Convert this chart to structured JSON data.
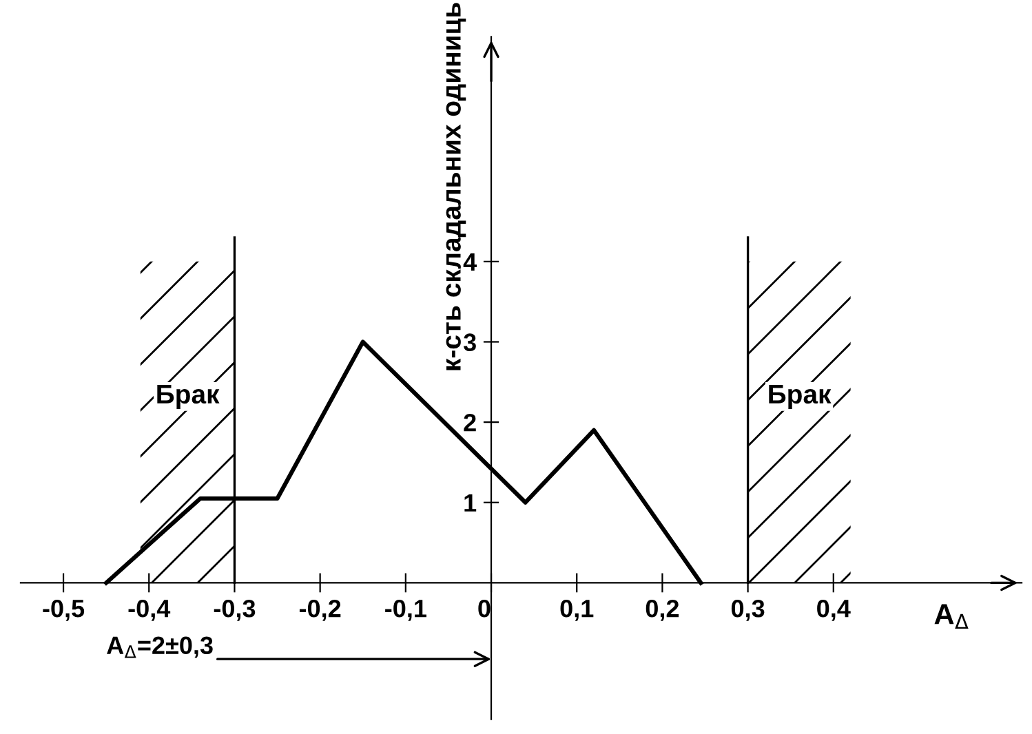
{
  "chart_data": {
    "type": "line",
    "x": [
      -0.45,
      -0.34,
      -0.25,
      -0.15,
      0.04,
      0.12,
      0.245
    ],
    "values": [
      0,
      1.05,
      1.05,
      3,
      1,
      1.9,
      0
    ],
    "color": "#000000",
    "xlabel": "A$_{Δ}$",
    "ylabel": "к-сть складальних одиниць",
    "xlim": [
      -0.55,
      0.62
    ],
    "ylim": [
      -1.7,
      6.8
    ],
    "xticks": [
      {
        "value": -0.5,
        "label": "-0,5"
      },
      {
        "value": -0.4,
        "label": "-0,4"
      },
      {
        "value": -0.3,
        "label": "-0,3"
      },
      {
        "value": -0.2,
        "label": "-0,2"
      },
      {
        "value": -0.1,
        "label": "-0,1"
      },
      0,
      {
        "value": 0.1,
        "label": "0,1"
      },
      {
        "value": 0.2,
        "label": "0,2"
      },
      {
        "value": 0.3,
        "label": "0,3"
      },
      {
        "value": 0.4,
        "label": "0,4"
      }
    ],
    "yticks": [
      1,
      2,
      3,
      4
    ],
    "bands": [
      {
        "axis": "x",
        "from": -0.41,
        "to": -0.3,
        "label": "Брак",
        "color": "#000000"
      },
      {
        "axis": "x",
        "from": 0.3,
        "to": 0.42,
        "label": "Брак",
        "color": "#000000"
      }
    ],
    "ref_lines": [
      {
        "axis": "x",
        "value": -0.3,
        "color": "#000000"
      },
      {
        "axis": "x",
        "value": 0.3,
        "color": "#000000"
      }
    ],
    "annotations": [
      "A$_{Δ}$=2±0,3"
    ],
    "grid": false,
    "marker": "none",
    "line_style": "solid"
  }
}
